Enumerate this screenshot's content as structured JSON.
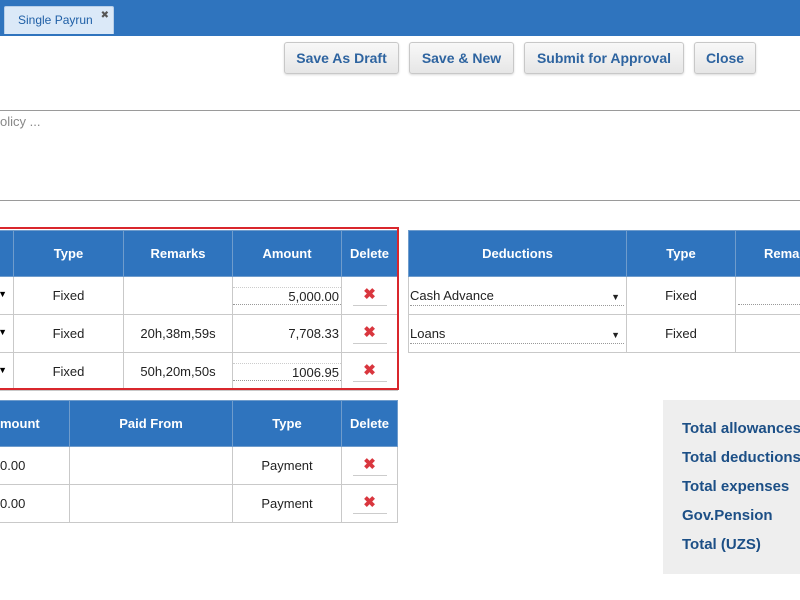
{
  "tab": {
    "label": "Single Payrun",
    "close_icon": "✖"
  },
  "toolbar": {
    "save_draft": "Save As Draft",
    "save_new": "Save & New",
    "submit": "Submit for Approval",
    "close": "Close"
  },
  "policy_text": "olicy ...",
  "allowances": {
    "headers": {
      "type": "Type",
      "remarks": "Remarks",
      "amount": "Amount",
      "delete": "Delete"
    },
    "rows": [
      {
        "type": "Fixed",
        "remarks": "",
        "amount": "5,000.00"
      },
      {
        "type": "Fixed",
        "remarks": "20h,38m,59s",
        "amount": "7,708.33"
      },
      {
        "type": "Fixed",
        "remarks": "50h,20m,50s",
        "amount": "1006.95"
      }
    ]
  },
  "deductions": {
    "headers": {
      "deductions": "Deductions",
      "type": "Type",
      "remarks": "Remar"
    },
    "rows": [
      {
        "name": "Cash Advance",
        "type": "Fixed"
      },
      {
        "name": "Loans",
        "type": "Fixed"
      }
    ]
  },
  "expenses": {
    "headers": {
      "amount": "mount",
      "paid_from": "Paid From",
      "type": "Type",
      "delete": "Delete"
    },
    "rows": [
      {
        "amount": "0.00",
        "paid_from": "",
        "type": "Payment"
      },
      {
        "amount": "0.00",
        "paid_from": "",
        "type": "Payment"
      }
    ]
  },
  "totals": {
    "allowances": "Total allowances",
    "deductions": "Total deductions",
    "expenses": "Total expenses",
    "pension": "Gov.Pension",
    "total": "Total (UZS)"
  },
  "icons": {
    "delete": "✖",
    "dropdown": "▼"
  },
  "colors": {
    "header_blue": "#2f74be",
    "delete_red": "#d9363e",
    "highlight_red": "#d9262c",
    "totals_text": "#1c4f86"
  }
}
